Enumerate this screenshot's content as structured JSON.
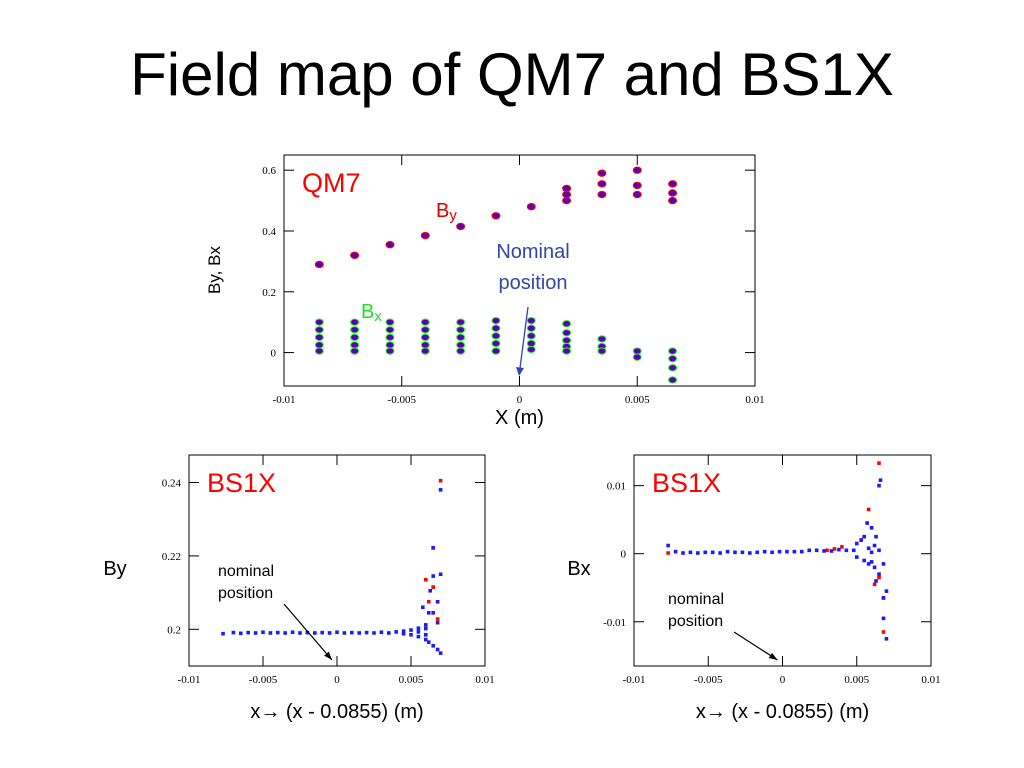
{
  "title": "Field map of QM7 and BS1X",
  "colors": {
    "red": "#ff0000",
    "blue": "#1a1aff",
    "purple": "#5a00b4",
    "green": "#33ee33",
    "annotation_blue": "#3344aa",
    "by_label": "#dd0000",
    "bx_label": "#22dd22"
  },
  "chart_data": [
    {
      "id": "qm7",
      "type": "scatter",
      "panel_label": "QM7",
      "ylabel": "By, Bx",
      "xlabel": "X (m)",
      "xlim": [
        -0.01,
        0.01
      ],
      "ylim": [
        -0.11,
        0.65
      ],
      "xticks": [
        -0.01,
        -0.005,
        0,
        0.005,
        0.01
      ],
      "xtick_labels": [
        "-0.01",
        "-0.005",
        "0",
        "0.005",
        "0.01"
      ],
      "yticks": [
        0,
        0.2,
        0.4,
        0.6
      ],
      "ytick_labels": [
        "0",
        "0.2",
        "0.4",
        "0.6"
      ],
      "annotations": {
        "by_main": "B",
        "by_sub": "y",
        "bx_main": "B",
        "bx_sub": "x",
        "nominal_line1": "Nominal",
        "nominal_line2": "position"
      },
      "series": [
        {
          "name": "By",
          "x": [
            -0.0085,
            -0.007,
            -0.0055,
            -0.004,
            -0.0025,
            -0.001,
            0.0005,
            0.002,
            0.002,
            0.002,
            0.0035,
            0.0035,
            0.0035,
            0.005,
            0.005,
            0.005,
            0.0065,
            0.0065,
            0.0065
          ],
          "y": [
            0.29,
            0.32,
            0.355,
            0.385,
            0.415,
            0.45,
            0.48,
            0.5,
            0.52,
            0.54,
            0.52,
            0.555,
            0.59,
            0.52,
            0.55,
            0.6,
            0.5,
            0.525,
            0.555
          ]
        },
        {
          "name": "Bx",
          "x": [
            -0.0085,
            -0.0085,
            -0.0085,
            -0.0085,
            -0.0085,
            -0.007,
            -0.007,
            -0.007,
            -0.007,
            -0.007,
            -0.0055,
            -0.0055,
            -0.0055,
            -0.0055,
            -0.0055,
            -0.004,
            -0.004,
            -0.004,
            -0.004,
            -0.004,
            -0.0025,
            -0.0025,
            -0.0025,
            -0.0025,
            -0.0025,
            -0.001,
            -0.001,
            -0.001,
            -0.001,
            -0.001,
            0.0005,
            0.0005,
            0.0005,
            0.0005,
            0.0005,
            0.002,
            0.002,
            0.002,
            0.002,
            0.002,
            0.0035,
            0.0035,
            0.0035,
            0.005,
            0.005,
            0.0065,
            0.0065,
            0.0065,
            0.0065
          ],
          "y": [
            0.1,
            0.075,
            0.05,
            0.025,
            0.005,
            0.1,
            0.075,
            0.05,
            0.025,
            0.005,
            0.1,
            0.075,
            0.05,
            0.025,
            0.005,
            0.1,
            0.075,
            0.05,
            0.025,
            0.005,
            0.1,
            0.075,
            0.05,
            0.025,
            0.005,
            0.105,
            0.08,
            0.055,
            0.03,
            0.005,
            0.105,
            0.08,
            0.055,
            0.03,
            0.01,
            0.095,
            0.065,
            0.04,
            0.02,
            0.005,
            0.045,
            0.02,
            0.005,
            0.005,
            -0.015,
            0.005,
            -0.02,
            -0.05,
            -0.09
          ]
        }
      ]
    },
    {
      "id": "bs1x_by",
      "type": "scatter",
      "panel_label": "BS1X",
      "ylabel": "By",
      "xlabel": "x→ (x - 0.0855) (m)",
      "xlim": [
        -0.01,
        0.01
      ],
      "ylim": [
        0.19,
        0.2475
      ],
      "xticks": [
        -0.01,
        -0.005,
        0,
        0.005,
        0.01
      ],
      "xtick_labels": [
        "-0.01",
        "-0.005",
        "0",
        "0.005",
        "0.01"
      ],
      "yticks": [
        0.2,
        0.22,
        0.24
      ],
      "ytick_labels": [
        "0.2",
        "0.22",
        "0.24"
      ],
      "annotations": {
        "nominal_line1": "nominal",
        "nominal_line2": "position"
      },
      "series": [
        {
          "name": "red",
          "x": [
            0.007,
            0.0065,
            0.0065,
            0.006,
            0.0068,
            0.0062
          ],
          "y": [
            0.2405,
            0.2222,
            0.2115,
            0.2135,
            0.2028,
            0.2075
          ]
        },
        {
          "name": "blue",
          "x": [
            -0.0077,
            -0.007,
            -0.0065,
            -0.006,
            -0.0055,
            -0.005,
            -0.0045,
            -0.004,
            -0.0035,
            -0.003,
            -0.0025,
            -0.002,
            -0.0015,
            -0.001,
            -0.0005,
            0,
            0.0005,
            0.001,
            0.0015,
            0.002,
            0.0025,
            0.003,
            0.0035,
            0.004,
            0.0045,
            0.0045,
            0.005,
            0.005,
            0.0055,
            0.0055,
            0.0055,
            0.006,
            0.006,
            0.006,
            0.006,
            0.0062,
            0.0062,
            0.0065,
            0.0065,
            0.0065,
            0.0065,
            0.0068,
            0.0068,
            0.0068,
            0.007,
            0.007,
            0.007,
            0.0063,
            0.0058
          ],
          "y": [
            0.1988,
            0.1991,
            0.1989,
            0.1991,
            0.199,
            0.1992,
            0.199,
            0.1991,
            0.199,
            0.1992,
            0.199,
            0.1991,
            0.199,
            0.1991,
            0.199,
            0.1992,
            0.199,
            0.1991,
            0.199,
            0.1991,
            0.199,
            0.1992,
            0.199,
            0.1993,
            0.1995,
            0.1988,
            0.1998,
            0.1985,
            0.2003,
            0.198,
            0.1993,
            0.2012,
            0.1972,
            0.2002,
            0.1985,
            0.2045,
            0.1965,
            0.2222,
            0.2145,
            0.2045,
            0.1955,
            0.2075,
            0.2018,
            0.1945,
            0.238,
            0.215,
            0.1935,
            0.2105,
            0.206
          ]
        }
      ]
    },
    {
      "id": "bs1x_bx",
      "type": "scatter",
      "panel_label": "BS1X",
      "ylabel": "Bx",
      "xlabel": "x→ (x - 0.0855) (m)",
      "xlim": [
        -0.01,
        0.01
      ],
      "ylim": [
        -0.0165,
        0.0145
      ],
      "xticks": [
        -0.01,
        -0.005,
        0,
        0.005,
        0.01
      ],
      "xtick_labels": [
        "-0.01",
        "-0.005",
        "0",
        "0.005",
        "0.01"
      ],
      "yticks": [
        -0.01,
        0,
        0.01
      ],
      "ytick_labels": [
        "-0.01",
        "0",
        "0.01"
      ],
      "annotations": {
        "nominal_line1": "nominal",
        "nominal_line2": "position"
      },
      "series": [
        {
          "name": "red",
          "x": [
            -0.0077,
            0.0065,
            0.0058,
            0.003,
            0.0035,
            0.004,
            0.0062,
            0.0068,
            0.0068,
            0.0065,
            0.0053
          ],
          "y": [
            0.0001,
            0.0133,
            0.0065,
            0.0005,
            0.0007,
            0.001,
            -0.0045,
            -0.0115,
            -0.0065,
            -0.0035,
            0.002
          ]
        },
        {
          "name": "blue",
          "x": [
            -0.0077,
            -0.0072,
            -0.0067,
            -0.0062,
            -0.0057,
            -0.0052,
            -0.0047,
            -0.0042,
            -0.0037,
            -0.0032,
            -0.0027,
            -0.0022,
            -0.0017,
            -0.0012,
            -0.0007,
            -0.0002,
            0.0003,
            0.0008,
            0.0013,
            0.0018,
            0.0023,
            0.0028,
            0.0033,
            0.0038,
            0.0043,
            0.0048,
            0.005,
            0.005,
            0.0053,
            0.0055,
            0.0055,
            0.0057,
            0.0058,
            0.006,
            0.006,
            0.006,
            0.0062,
            0.0062,
            0.0063,
            0.0065,
            0.0065,
            0.0065,
            0.0066,
            0.0068,
            0.0068,
            0.0068,
            0.007,
            0.007,
            0.0058,
            0.0063
          ],
          "y": [
            0.0012,
            0.0003,
            0.0001,
            0.0002,
            0.0001,
            0.0002,
            0.0002,
            0.0001,
            0.0003,
            0.0002,
            0.0002,
            0.0001,
            0.0002,
            0.0003,
            0.0002,
            0.0003,
            0.0003,
            0.0003,
            0.0003,
            0.0005,
            0.0005,
            0.0004,
            0.0004,
            0.0006,
            0.0005,
            0.0005,
            0.0015,
            -0.0005,
            0.002,
            0.0025,
            -0.001,
            0.0045,
            0.0008,
            0.0038,
            -0.0012,
            0.0002,
            0.0012,
            -0.002,
            -0.004,
            0.01,
            0.0005,
            -0.003,
            0.0108,
            -0.0015,
            -0.0065,
            -0.0095,
            -0.0055,
            -0.0125,
            -0.0015,
            0.0025
          ]
        }
      ]
    }
  ]
}
